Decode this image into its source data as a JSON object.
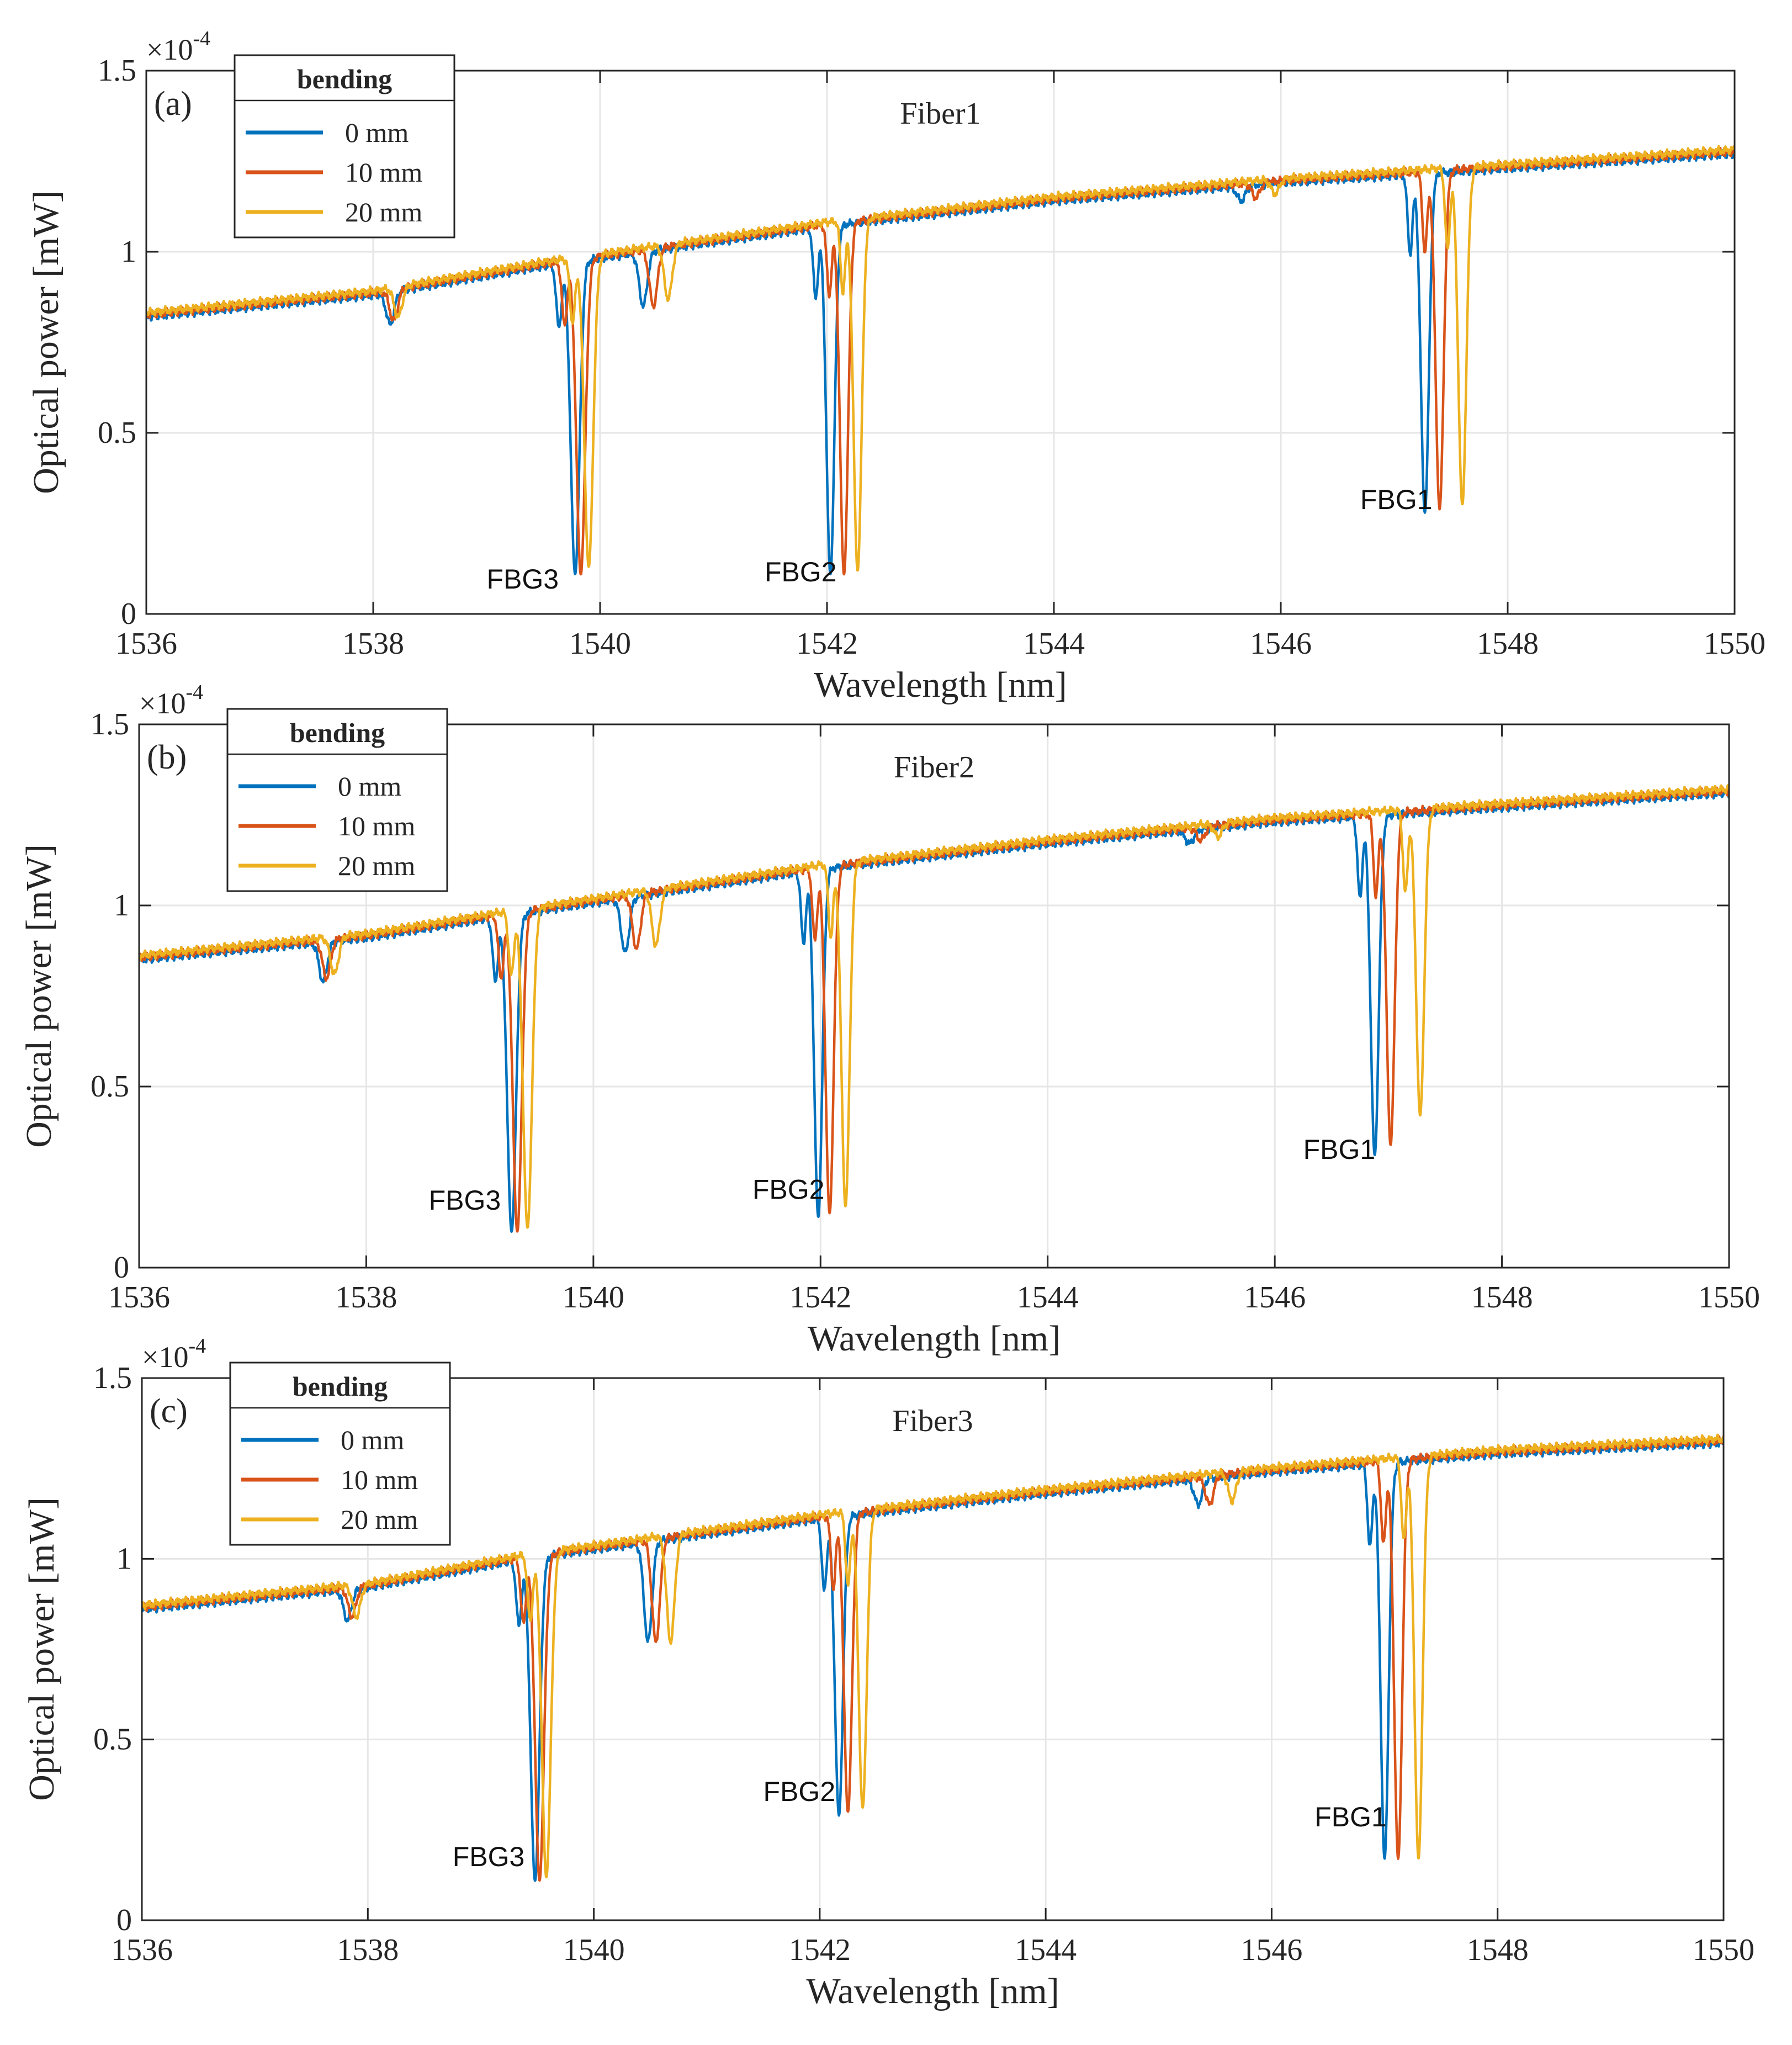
{
  "colors": {
    "series": [
      "#0072BD",
      "#D95319",
      "#EDB120"
    ],
    "axis": "#262626",
    "grid": "#e6e6e6"
  },
  "chart_data": [
    {
      "type": "line",
      "panel_label": "(a)",
      "title": "Fiber1",
      "xlabel": "Wavelength [nm]",
      "ylabel": "Optical power [mW]",
      "y_multiplier": "×10",
      "y_exponent": "-4",
      "xlim": [
        1536,
        1550
      ],
      "ylim": [
        0,
        1.5
      ],
      "xticks": [
        "1536",
        "1538",
        "1540",
        "1542",
        "1544",
        "1546",
        "1548",
        "1550"
      ],
      "yticks": [
        "0",
        "0.5",
        "1",
        "1.5"
      ],
      "grid": true,
      "legend": {
        "title": "bending",
        "placement": "top-left",
        "entries": [
          "0 mm",
          "10 mm",
          "20 mm"
        ]
      },
      "baseline": [
        [
          1536,
          0.82
        ],
        [
          1538,
          0.88
        ],
        [
          1539.5,
          0.96
        ],
        [
          1542,
          1.07
        ],
        [
          1544,
          1.14
        ],
        [
          1546,
          1.19
        ],
        [
          1548,
          1.23
        ],
        [
          1550,
          1.27
        ]
      ],
      "series": [
        {
          "name": "0 mm",
          "offset": 0.0,
          "dips": [
            {
              "label": "FBG3",
              "center": 1539.78,
              "min": 0.11,
              "width": 0.055
            },
            {
              "label": "FBG2",
              "center": 1542.03,
              "min": 0.11,
              "width": 0.05
            },
            {
              "label": "FBG1",
              "center": 1547.27,
              "min": 0.28,
              "width": 0.05
            },
            {
              "center": 1538.15,
              "min": 0.8,
              "width": 0.05
            },
            {
              "center": 1540.38,
              "min": 0.85,
              "width": 0.05
            },
            {
              "center": 1545.65,
              "min": 1.14,
              "width": 0.05
            }
          ]
        },
        {
          "name": "10 mm",
          "offset": 0.006,
          "dips": [
            {
              "label": "FBG3",
              "center": 1539.83,
              "min": 0.11,
              "width": 0.055
            },
            {
              "label": "FBG2",
              "center": 1542.15,
              "min": 0.11,
              "width": 0.05
            },
            {
              "label": "FBG1",
              "center": 1547.4,
              "min": 0.29,
              "width": 0.05
            },
            {
              "center": 1538.18,
              "min": 0.81,
              "width": 0.05
            },
            {
              "center": 1540.47,
              "min": 0.85,
              "width": 0.05
            },
            {
              "center": 1545.78,
              "min": 1.15,
              "width": 0.05
            }
          ]
        },
        {
          "name": "20 mm",
          "offset": 0.012,
          "dips": [
            {
              "label": "FBG3",
              "center": 1539.9,
              "min": 0.13,
              "width": 0.055
            },
            {
              "label": "FBG2",
              "center": 1542.27,
              "min": 0.12,
              "width": 0.05
            },
            {
              "label": "FBG1",
              "center": 1547.6,
              "min": 0.3,
              "width": 0.05
            },
            {
              "center": 1538.22,
              "min": 0.82,
              "width": 0.05
            },
            {
              "center": 1540.6,
              "min": 0.87,
              "width": 0.05
            },
            {
              "center": 1545.95,
              "min": 1.16,
              "width": 0.05
            }
          ]
        }
      ],
      "annotations": [
        {
          "text": "FBG3",
          "x": 1539.0,
          "y": 0.07
        },
        {
          "text": "FBG2",
          "x": 1541.45,
          "y": 0.09
        },
        {
          "text": "FBG1",
          "x": 1546.7,
          "y": 0.29
        }
      ]
    },
    {
      "type": "line",
      "panel_label": "(b)",
      "title": "Fiber2",
      "xlabel": "Wavelength [nm]",
      "ylabel": "Optical power [mW]",
      "y_multiplier": "×10",
      "y_exponent": "-4",
      "xlim": [
        1536,
        1550
      ],
      "ylim": [
        0,
        1.5
      ],
      "xticks": [
        "1536",
        "1538",
        "1540",
        "1542",
        "1544",
        "1546",
        "1548",
        "1550"
      ],
      "yticks": [
        "0",
        "0.5",
        "1",
        "1.5"
      ],
      "grid": true,
      "legend": {
        "title": "bending",
        "placement": "top-left",
        "entries": [
          "0 mm",
          "10 mm",
          "20 mm"
        ]
      },
      "baseline": [
        [
          1536,
          0.85
        ],
        [
          1538,
          0.91
        ],
        [
          1539.2,
          0.97
        ],
        [
          1542,
          1.1
        ],
        [
          1544,
          1.17
        ],
        [
          1546,
          1.23
        ],
        [
          1548,
          1.27
        ],
        [
          1550,
          1.31
        ]
      ],
      "series": [
        {
          "name": "0 mm",
          "offset": 0.0,
          "dips": [
            {
              "label": "FBG3",
              "center": 1539.28,
              "min": 0.1,
              "width": 0.055
            },
            {
              "label": "FBG2",
              "center": 1541.98,
              "min": 0.14,
              "width": 0.05
            },
            {
              "label": "FBG1",
              "center": 1546.88,
              "min": 0.31,
              "width": 0.05
            },
            {
              "center": 1537.62,
              "min": 0.79,
              "width": 0.05
            },
            {
              "center": 1540.28,
              "min": 0.87,
              "width": 0.05
            },
            {
              "center": 1545.25,
              "min": 1.17,
              "width": 0.05
            }
          ]
        },
        {
          "name": "10 mm",
          "offset": 0.006,
          "dips": [
            {
              "label": "FBG3",
              "center": 1539.33,
              "min": 0.1,
              "width": 0.055
            },
            {
              "label": "FBG2",
              "center": 1542.08,
              "min": 0.15,
              "width": 0.05
            },
            {
              "label": "FBG1",
              "center": 1547.02,
              "min": 0.34,
              "width": 0.05
            },
            {
              "center": 1537.65,
              "min": 0.8,
              "width": 0.05
            },
            {
              "center": 1540.38,
              "min": 0.88,
              "width": 0.05
            },
            {
              "center": 1545.35,
              "min": 1.18,
              "width": 0.05
            }
          ]
        },
        {
          "name": "20 mm",
          "offset": 0.012,
          "dips": [
            {
              "label": "FBG3",
              "center": 1539.42,
              "min": 0.11,
              "width": 0.055
            },
            {
              "label": "FBG2",
              "center": 1542.22,
              "min": 0.17,
              "width": 0.05
            },
            {
              "label": "FBG1",
              "center": 1547.28,
              "min": 0.42,
              "width": 0.05
            },
            {
              "center": 1537.72,
              "min": 0.81,
              "width": 0.05
            },
            {
              "center": 1540.55,
              "min": 0.89,
              "width": 0.05
            },
            {
              "center": 1545.5,
              "min": 1.19,
              "width": 0.05
            }
          ]
        }
      ],
      "annotations": [
        {
          "text": "FBG3",
          "x": 1538.55,
          "y": 0.16
        },
        {
          "text": "FBG2",
          "x": 1541.4,
          "y": 0.19
        },
        {
          "text": "FBG1",
          "x": 1546.25,
          "y": 0.3
        }
      ]
    },
    {
      "type": "line",
      "panel_label": "(c)",
      "title": "Fiber3",
      "xlabel": "Wavelength [nm]",
      "ylabel": "Optical power [mW]",
      "y_multiplier": "×10",
      "y_exponent": "-4",
      "xlim": [
        1536,
        1550
      ],
      "ylim": [
        0,
        1.5
      ],
      "xticks": [
        "1536",
        "1538",
        "1540",
        "1542",
        "1544",
        "1546",
        "1548",
        "1550"
      ],
      "yticks": [
        "0",
        "0.5",
        "1",
        "1.5"
      ],
      "grid": true,
      "legend": {
        "title": "bending",
        "placement": "top-left",
        "entries": [
          "0 mm",
          "10 mm",
          "20 mm"
        ]
      },
      "baseline": [
        [
          1536,
          0.86
        ],
        [
          1538,
          0.92
        ],
        [
          1539.4,
          1.0
        ],
        [
          1542,
          1.11
        ],
        [
          1544,
          1.18
        ],
        [
          1546,
          1.24
        ],
        [
          1548,
          1.29
        ],
        [
          1550,
          1.32
        ]
      ],
      "series": [
        {
          "name": "0 mm",
          "offset": 0.0,
          "dips": [
            {
              "label": "FBG3",
              "center": 1539.48,
              "min": 0.11,
              "width": 0.055
            },
            {
              "label": "FBG2",
              "center": 1542.17,
              "min": 0.29,
              "width": 0.05
            },
            {
              "label": "FBG1",
              "center": 1547.0,
              "min": 0.17,
              "width": 0.05
            },
            {
              "center": 1537.82,
              "min": 0.83,
              "width": 0.05
            },
            {
              "center": 1540.48,
              "min": 0.77,
              "width": 0.05
            },
            {
              "center": 1545.35,
              "min": 1.15,
              "width": 0.05
            }
          ]
        },
        {
          "name": "10 mm",
          "offset": 0.006,
          "dips": [
            {
              "label": "FBG3",
              "center": 1539.52,
              "min": 0.11,
              "width": 0.055
            },
            {
              "label": "FBG2",
              "center": 1542.25,
              "min": 0.3,
              "width": 0.05
            },
            {
              "label": "FBG1",
              "center": 1547.12,
              "min": 0.17,
              "width": 0.05
            },
            {
              "center": 1537.86,
              "min": 0.84,
              "width": 0.05
            },
            {
              "center": 1540.55,
              "min": 0.77,
              "width": 0.05
            },
            {
              "center": 1545.45,
              "min": 1.15,
              "width": 0.05
            }
          ]
        },
        {
          "name": "20 mm",
          "offset": 0.012,
          "dips": [
            {
              "label": "FBG3",
              "center": 1539.58,
              "min": 0.12,
              "width": 0.055
            },
            {
              "label": "FBG2",
              "center": 1542.38,
              "min": 0.31,
              "width": 0.05
            },
            {
              "label": "FBG1",
              "center": 1547.3,
              "min": 0.17,
              "width": 0.05
            },
            {
              "center": 1537.9,
              "min": 0.84,
              "width": 0.05
            },
            {
              "center": 1540.68,
              "min": 0.77,
              "width": 0.05
            },
            {
              "center": 1545.65,
              "min": 1.16,
              "width": 0.05
            }
          ]
        }
      ],
      "annotations": [
        {
          "text": "FBG3",
          "x": 1538.75,
          "y": 0.15
        },
        {
          "text": "FBG2",
          "x": 1541.5,
          "y": 0.33
        },
        {
          "text": "FBG1",
          "x": 1546.38,
          "y": 0.26
        }
      ]
    }
  ]
}
